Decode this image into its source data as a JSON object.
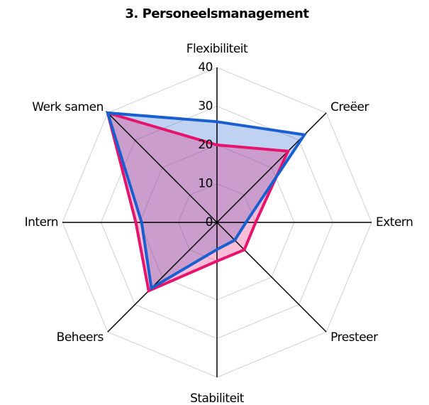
{
  "chart_data": {
    "type": "radar",
    "title": "3. Personeelsmanagement",
    "categories": [
      "Flexibiliteit",
      "Creëer",
      "Extern",
      "Presteer",
      "Stabiliteit",
      "Beheers",
      "Intern",
      "Werk samen"
    ],
    "series": [
      {
        "color": "#1a5fd0",
        "values": [
          26,
          32,
          7.5,
          6.5,
          7,
          24,
          19.5,
          40
        ]
      },
      {
        "color": "#e5156e",
        "values": [
          20,
          26,
          10,
          10,
          10,
          25,
          21,
          40
        ]
      }
    ],
    "rlim": [
      0,
      40
    ],
    "rticks": [
      0,
      10,
      20,
      30,
      40
    ],
    "grid": true
  }
}
